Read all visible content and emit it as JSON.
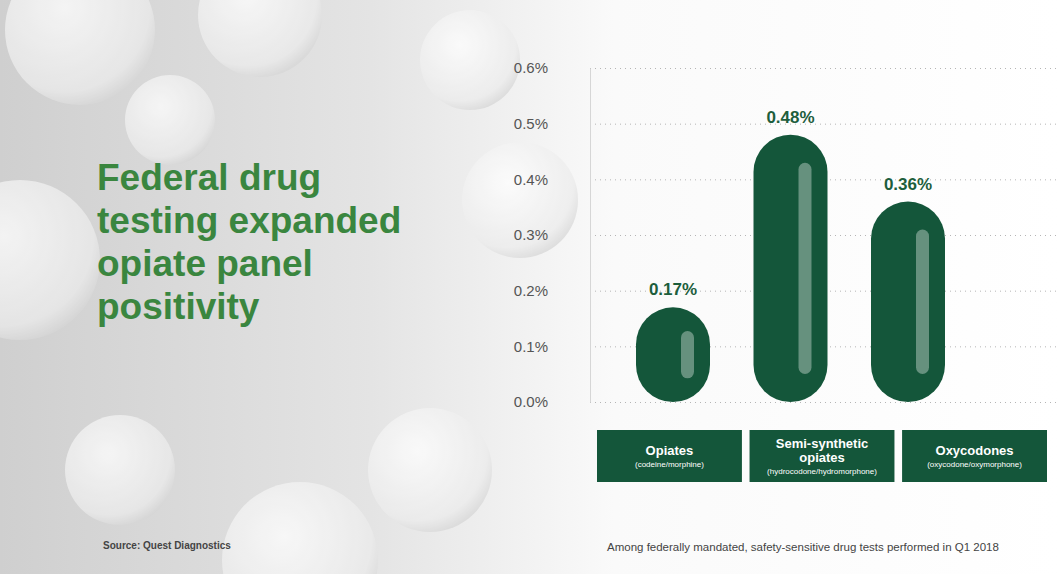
{
  "chart_data": {
    "type": "bar",
    "title": "Federal drug testing expanded opiate panel positivity",
    "categories": [
      "Opiates",
      "Semi-synthetic opiates",
      "Oxycodones"
    ],
    "category_details": [
      "(codeine/morphine)",
      "(hydrocodone/hydromorphone)",
      "(oxycodone/oxymorphone)"
    ],
    "values": [
      0.17,
      0.48,
      0.36
    ],
    "value_labels": [
      "0.17%",
      "0.48%",
      "0.36%"
    ],
    "data_labels": true,
    "color": "#14563a",
    "ylim": [
      0,
      0.6
    ],
    "yticks": [
      {
        "value": 0,
        "label": "0.0%"
      },
      {
        "value": 0.1,
        "label": "0.1%"
      },
      {
        "value": 0.2,
        "label": "0.2%"
      },
      {
        "value": 0.3,
        "label": "0.3%"
      },
      {
        "value": 0.4,
        "label": "0.4%"
      },
      {
        "value": 0.5,
        "label": "0.5%"
      },
      {
        "value": 0.6,
        "label": "0.6%"
      }
    ],
    "grid": true,
    "source": "Source: Quest Diagnostics",
    "footnote": "Among federally mandated, safety-sensitive drug tests performed in Q1 2018"
  }
}
